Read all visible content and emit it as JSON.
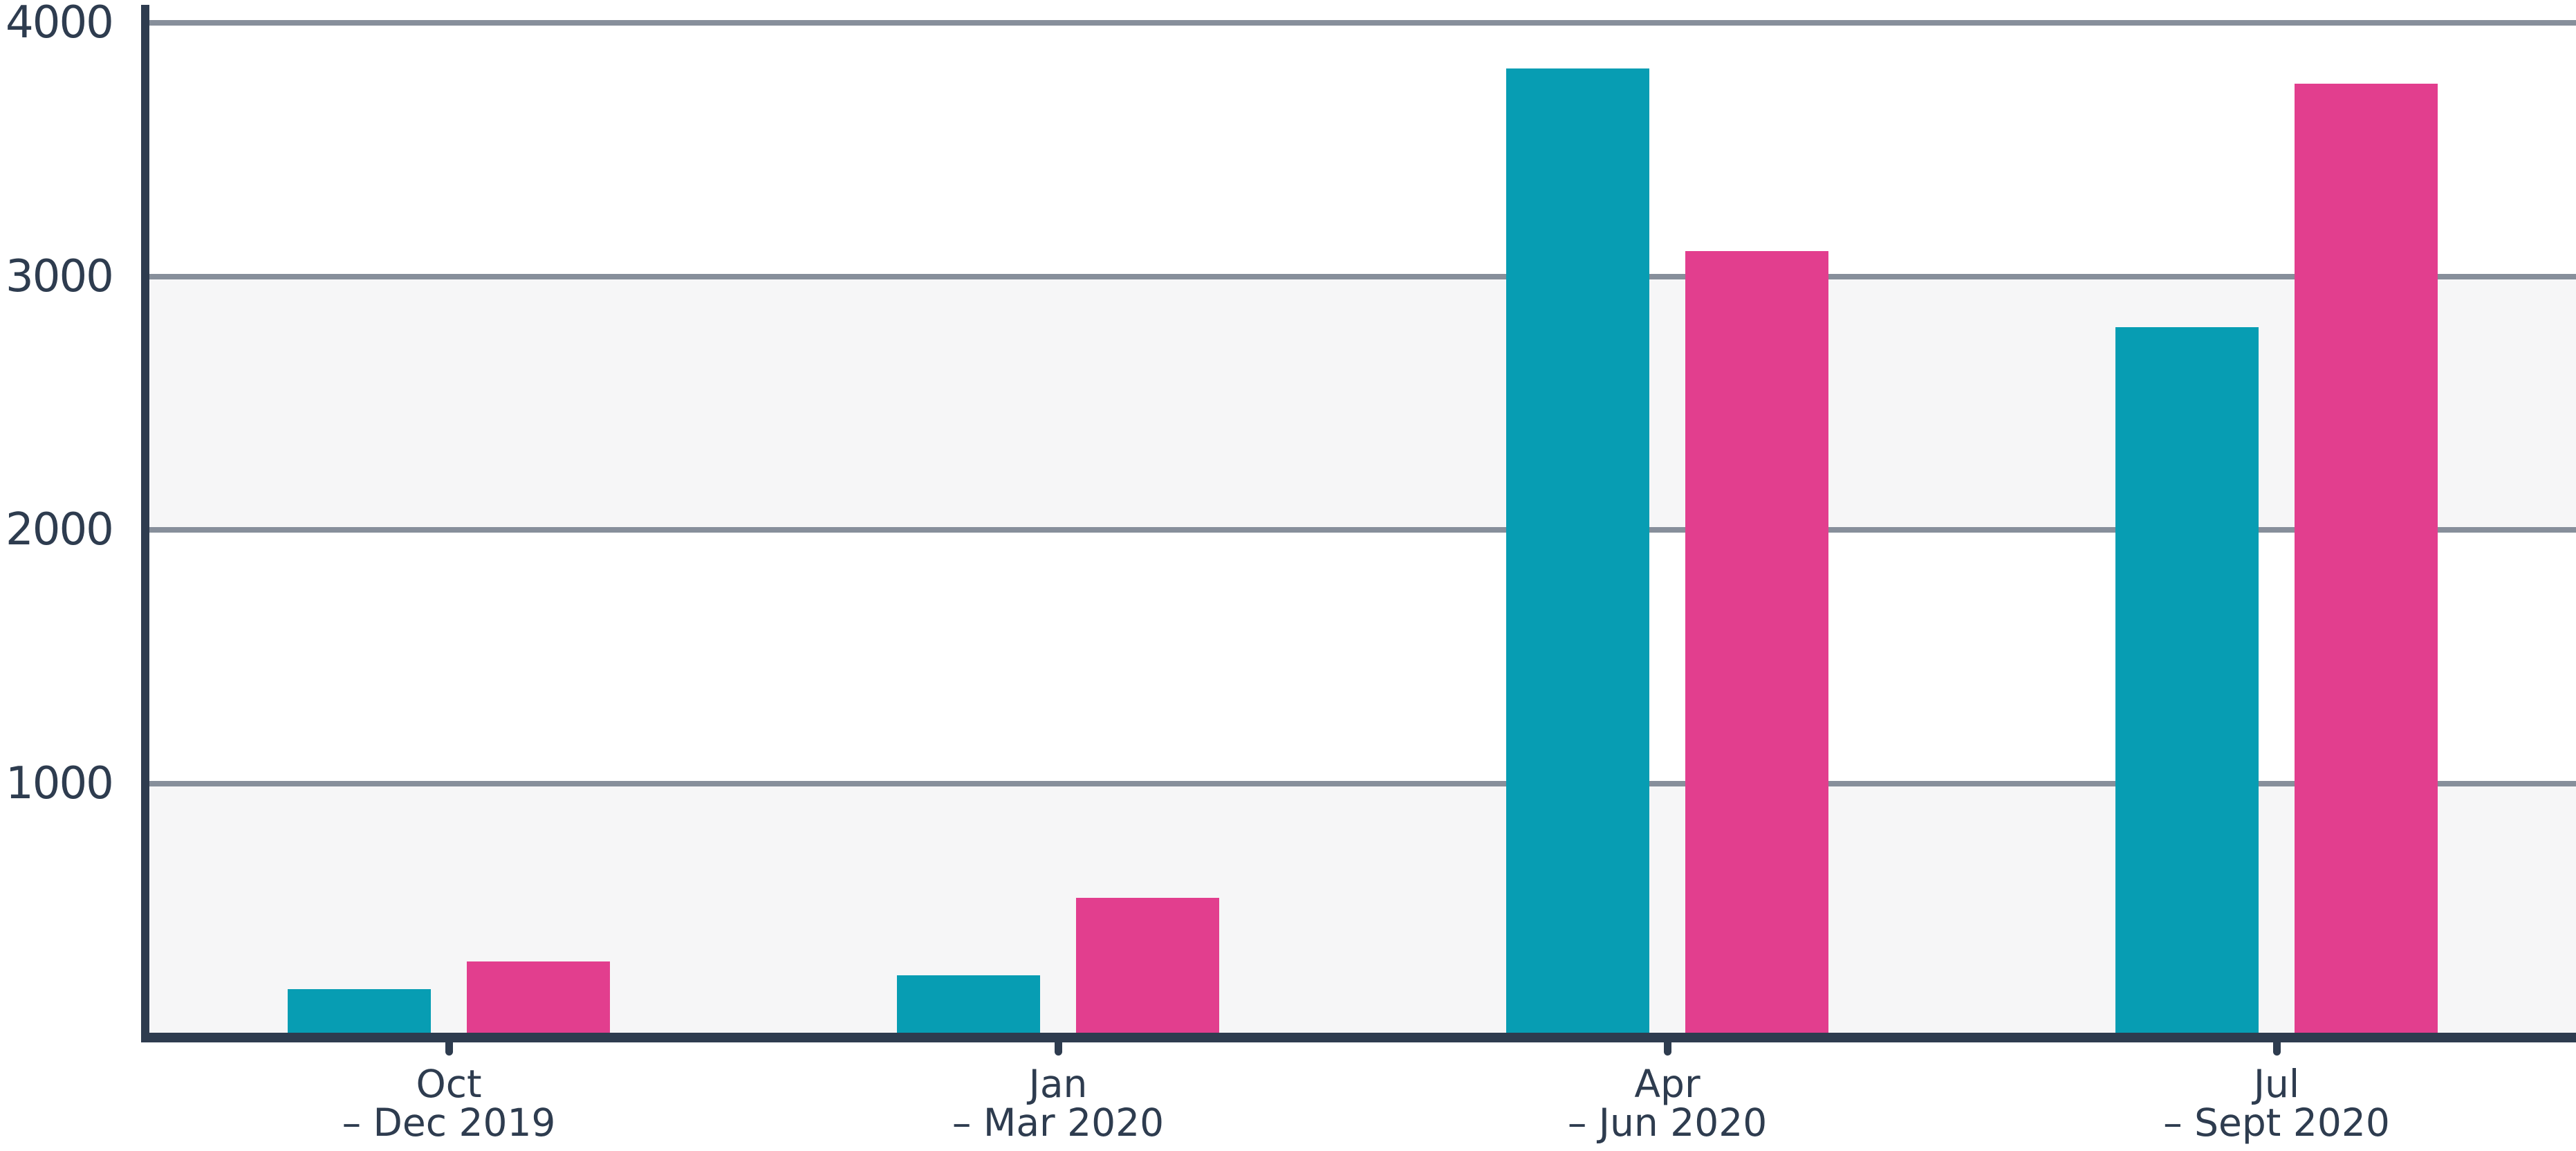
{
  "chart_data": {
    "type": "bar",
    "categories": [
      "Oct – Dec 2019",
      "Jan – Mar 2020",
      "Apr – Jun 2020",
      "Jul – Sept 2020"
    ],
    "category_label_lines": [
      [
        "Oct",
        "– Dec 2019"
      ],
      [
        "Jan",
        "– Mar 2020"
      ],
      [
        "Apr",
        "– Jun 2020"
      ],
      [
        "Jul",
        "– Sept 2020"
      ]
    ],
    "series": [
      {
        "name": "teal",
        "color": "#079db3",
        "values": [
          190,
          245,
          3820,
          2800
        ]
      },
      {
        "name": "pink",
        "color": "#e23e8e",
        "values": [
          300,
          550,
          3100,
          3760
        ]
      }
    ],
    "title": "",
    "xlabel": "",
    "ylabel": "",
    "ylim": [
      0,
      4000
    ],
    "y_ticks": [
      1000,
      2000,
      3000,
      4000
    ],
    "y_tick_labels": [
      "1000",
      "2000",
      "3000",
      "4000"
    ],
    "grid": "horizontal",
    "band_ranges": [
      [
        0,
        1000
      ],
      [
        2000,
        3000
      ]
    ],
    "legend": "none",
    "colors": {
      "axis": "#2e3c4f",
      "gridline": "#878f9b",
      "band": "#f6f6f7",
      "label_text": "#2e3c4f",
      "background": "#ffffff"
    }
  }
}
